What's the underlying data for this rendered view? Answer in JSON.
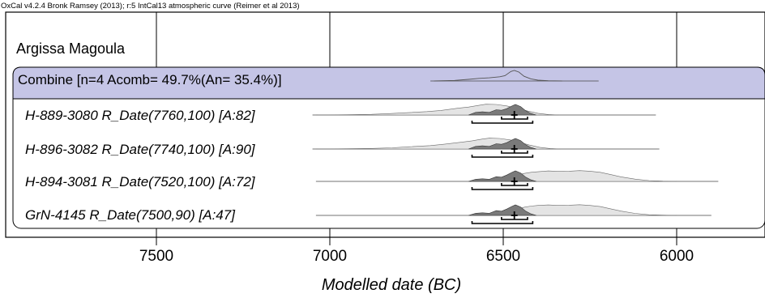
{
  "chart_data": {
    "type": "area",
    "credit": "OxCal v4.2.4 Bronk Ramsey (2013); r:5 IntCal13 atmospheric curve (Reimer et al 2013)",
    "title": "Argissa Magoula",
    "xlabel": "Modelled date (BC)",
    "ylabel": "",
    "x_reversed": true,
    "xlim": [
      7800,
      5755
    ],
    "xticks": [
      7500,
      7000,
      6500,
      6000
    ],
    "grid": true,
    "rows": [
      {
        "label": "Combine [n=4 Acomb= 49.7%(An= 35.4%)]",
        "highlighted": true,
        "range": [
          6710,
          6225
        ],
        "posterior": [
          [
            6700,
            0.0
          ],
          [
            6640,
            0.05
          ],
          [
            6600,
            0.15
          ],
          [
            6570,
            0.25
          ],
          [
            6540,
            0.3
          ],
          [
            6510,
            0.4
          ],
          [
            6495,
            0.5
          ],
          [
            6478,
            0.9
          ],
          [
            6468,
            1.0
          ],
          [
            6455,
            0.85
          ],
          [
            6440,
            0.45
          ],
          [
            6420,
            0.2
          ],
          [
            6400,
            0.08
          ],
          [
            6370,
            0.02
          ],
          [
            6330,
            0.0
          ]
        ]
      },
      {
        "label": "H-889-3080 R_Date(7760,100) [A:82]",
        "highlighted": false,
        "range": [
          7050,
          6060
        ],
        "prior": [
          [
            7040,
            0.0
          ],
          [
            6950,
            0.02
          ],
          [
            6880,
            0.06
          ],
          [
            6830,
            0.12
          ],
          [
            6780,
            0.2
          ],
          [
            6720,
            0.3
          ],
          [
            6680,
            0.4
          ],
          [
            6630,
            0.6
          ],
          [
            6600,
            0.7
          ],
          [
            6570,
            0.85
          ],
          [
            6550,
            0.95
          ],
          [
            6520,
            0.93
          ],
          [
            6490,
            0.8
          ],
          [
            6460,
            0.6
          ],
          [
            6430,
            0.35
          ],
          [
            6400,
            0.15
          ],
          [
            6370,
            0.04
          ],
          [
            6340,
            0.0
          ]
        ],
        "posterior": [
          [
            6600,
            0.0
          ],
          [
            6580,
            0.25
          ],
          [
            6560,
            0.3
          ],
          [
            6540,
            0.25
          ],
          [
            6520,
            0.5
          ],
          [
            6505,
            0.45
          ],
          [
            6490,
            0.6
          ],
          [
            6475,
            0.85
          ],
          [
            6465,
            1.0
          ],
          [
            6450,
            0.8
          ],
          [
            6435,
            0.4
          ],
          [
            6420,
            0.15
          ],
          [
            6405,
            0.0
          ]
        ],
        "ranges_68": [
          [
            6505,
            6430
          ]
        ],
        "ranges_95": [
          [
            6590,
            6415
          ]
        ],
        "mean": 6468
      },
      {
        "label": "H-896-3082 R_Date(7740,100) [A:90]",
        "highlighted": false,
        "range": [
          7050,
          6050
        ],
        "prior": [
          [
            7040,
            0.0
          ],
          [
            6950,
            0.02
          ],
          [
            6880,
            0.05
          ],
          [
            6820,
            0.11
          ],
          [
            6770,
            0.2
          ],
          [
            6710,
            0.3
          ],
          [
            6670,
            0.42
          ],
          [
            6620,
            0.6
          ],
          [
            6590,
            0.72
          ],
          [
            6560,
            0.88
          ],
          [
            6540,
            0.96
          ],
          [
            6510,
            0.93
          ],
          [
            6480,
            0.8
          ],
          [
            6455,
            0.6
          ],
          [
            6425,
            0.35
          ],
          [
            6395,
            0.15
          ],
          [
            6365,
            0.04
          ],
          [
            6335,
            0.0
          ]
        ],
        "posterior": [
          [
            6600,
            0.0
          ],
          [
            6580,
            0.25
          ],
          [
            6560,
            0.3
          ],
          [
            6540,
            0.25
          ],
          [
            6520,
            0.5
          ],
          [
            6505,
            0.45
          ],
          [
            6490,
            0.6
          ],
          [
            6475,
            0.85
          ],
          [
            6465,
            1.0
          ],
          [
            6450,
            0.8
          ],
          [
            6435,
            0.4
          ],
          [
            6420,
            0.15
          ],
          [
            6405,
            0.0
          ]
        ],
        "ranges_68": [
          [
            6505,
            6430
          ]
        ],
        "ranges_95": [
          [
            6590,
            6415
          ]
        ],
        "mean": 6468
      },
      {
        "label": "H-894-3081 R_Date(7520,100) [A:72]",
        "highlighted": false,
        "range": [
          7040,
          5880
        ],
        "prior": [
          [
            6520,
            0.0
          ],
          [
            6505,
            0.1
          ],
          [
            6495,
            0.25
          ],
          [
            6480,
            0.4
          ],
          [
            6460,
            0.55
          ],
          [
            6440,
            0.7
          ],
          [
            6420,
            0.8
          ],
          [
            6400,
            0.85
          ],
          [
            6370,
            0.92
          ],
          [
            6340,
            0.88
          ],
          [
            6310,
            0.9
          ],
          [
            6280,
            0.95
          ],
          [
            6250,
            0.9
          ],
          [
            6220,
            0.8
          ],
          [
            6190,
            0.6
          ],
          [
            6160,
            0.4
          ],
          [
            6120,
            0.2
          ],
          [
            6080,
            0.07
          ],
          [
            6040,
            0.02
          ],
          [
            6000,
            0.0
          ]
        ],
        "posterior": [
          [
            6600,
            0.0
          ],
          [
            6580,
            0.2
          ],
          [
            6560,
            0.25
          ],
          [
            6540,
            0.2
          ],
          [
            6520,
            0.45
          ],
          [
            6505,
            0.4
          ],
          [
            6490,
            0.6
          ],
          [
            6475,
            0.85
          ],
          [
            6465,
            1.0
          ],
          [
            6450,
            0.8
          ],
          [
            6435,
            0.4
          ],
          [
            6420,
            0.15
          ],
          [
            6405,
            0.0
          ]
        ],
        "ranges_68": [
          [
            6505,
            6430
          ]
        ],
        "ranges_95": [
          [
            6590,
            6415
          ]
        ],
        "mean": 6468
      },
      {
        "label": "GrN-4145 R_Date(7500,90) [A:47]",
        "highlighted": false,
        "range": [
          7040,
          5900
        ],
        "prior": [
          [
            6520,
            0.0
          ],
          [
            6505,
            0.1
          ],
          [
            6495,
            0.25
          ],
          [
            6480,
            0.4
          ],
          [
            6460,
            0.55
          ],
          [
            6440,
            0.72
          ],
          [
            6420,
            0.82
          ],
          [
            6400,
            0.88
          ],
          [
            6370,
            0.92
          ],
          [
            6340,
            0.88
          ],
          [
            6310,
            0.9
          ],
          [
            6280,
            0.94
          ],
          [
            6250,
            0.88
          ],
          [
            6220,
            0.78
          ],
          [
            6190,
            0.58
          ],
          [
            6160,
            0.38
          ],
          [
            6120,
            0.18
          ],
          [
            6080,
            0.06
          ],
          [
            6040,
            0.02
          ],
          [
            6000,
            0.0
          ]
        ],
        "posterior": [
          [
            6600,
            0.0
          ],
          [
            6580,
            0.2
          ],
          [
            6560,
            0.25
          ],
          [
            6540,
            0.2
          ],
          [
            6520,
            0.45
          ],
          [
            6505,
            0.4
          ],
          [
            6490,
            0.6
          ],
          [
            6475,
            0.85
          ],
          [
            6465,
            1.0
          ],
          [
            6450,
            0.8
          ],
          [
            6435,
            0.4
          ],
          [
            6420,
            0.15
          ],
          [
            6405,
            0.0
          ]
        ],
        "ranges_68": [
          [
            6505,
            6430
          ]
        ],
        "ranges_95": [
          [
            6590,
            6415
          ]
        ],
        "mean": 6468
      }
    ]
  },
  "colors": {
    "highlight_band": "#c5c5e6",
    "prior_fill": "#e4e4e4",
    "posterior_fill": "#7a7a7a",
    "combine_line": "#555555",
    "gridline": "#000000"
  }
}
